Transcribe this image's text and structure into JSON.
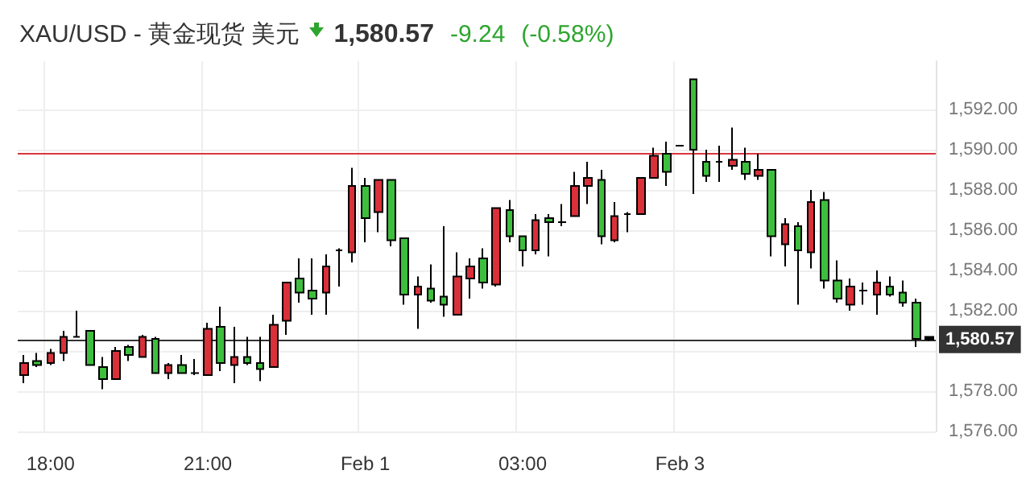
{
  "chart_data": {
    "type": "candlestick",
    "title": "XAU/USD - 黄金现货 美元",
    "annotations": [
      "1,580.57",
      "-9.24",
      "(-0.58%)"
    ],
    "categories": [
      null,
      null,
      "18:00",
      null,
      null,
      null,
      null,
      null,
      null,
      null,
      null,
      null,
      null,
      null,
      "21:00",
      null,
      null,
      null,
      null,
      null,
      null,
      null,
      null,
      null,
      null,
      null,
      "Feb 1",
      null,
      null,
      null,
      null,
      null,
      null,
      null,
      null,
      null,
      null,
      null,
      "03:00",
      null,
      null,
      null,
      null,
      null,
      null,
      null,
      null,
      null,
      null,
      null,
      "Feb 3",
      null,
      null,
      null,
      null,
      null,
      null,
      null,
      null,
      null,
      null,
      null,
      null,
      null,
      null,
      null,
      null,
      null,
      null,
      null
    ],
    "ohlc": [
      [
        1578.8,
        1579.8,
        1578.4,
        1579.4
      ],
      [
        1579.5,
        1579.9,
        1579.2,
        1579.3
      ],
      [
        1579.4,
        1580.1,
        1579.3,
        1579.9
      ],
      [
        1579.9,
        1581.0,
        1579.5,
        1580.7
      ],
      [
        1580.7,
        1582.0,
        1580.7,
        1580.7
      ],
      [
        1581.0,
        1581.0,
        1579.3,
        1579.3
      ],
      [
        1579.2,
        1579.7,
        1578.1,
        1578.6
      ],
      [
        1578.6,
        1580.2,
        1578.6,
        1580.0
      ],
      [
        1580.2,
        1580.3,
        1579.5,
        1579.8
      ],
      [
        1579.7,
        1580.8,
        1579.7,
        1580.7
      ],
      [
        1580.6,
        1580.7,
        1578.9,
        1578.9
      ],
      [
        1578.9,
        1579.4,
        1578.6,
        1579.3
      ],
      [
        1579.3,
        1579.8,
        1578.9,
        1578.9
      ],
      [
        1578.9,
        1579.6,
        1578.8,
        1578.9
      ],
      [
        1578.8,
        1581.4,
        1578.8,
        1581.1
      ],
      [
        1581.2,
        1582.2,
        1579.0,
        1579.4
      ],
      [
        1579.3,
        1581.2,
        1578.4,
        1579.7
      ],
      [
        1579.7,
        1580.7,
        1579.3,
        1579.4
      ],
      [
        1579.4,
        1580.7,
        1578.5,
        1579.1
      ],
      [
        1579.2,
        1581.8,
        1579.2,
        1581.3
      ],
      [
        1581.5,
        1583.4,
        1580.8,
        1583.4
      ],
      [
        1583.6,
        1584.6,
        1582.4,
        1582.9
      ],
      [
        1583.0,
        1584.6,
        1581.8,
        1582.6
      ],
      [
        1582.9,
        1584.8,
        1581.8,
        1584.2
      ],
      [
        1585.0,
        1585.1,
        1583.2,
        1585.0
      ],
      [
        1584.9,
        1589.1,
        1584.4,
        1588.2
      ],
      [
        1588.2,
        1588.6,
        1585.4,
        1586.6
      ],
      [
        1586.9,
        1588.5,
        1585.9,
        1588.5
      ],
      [
        1588.5,
        1588.5,
        1585.2,
        1585.5
      ],
      [
        1585.6,
        1585.6,
        1582.3,
        1582.8
      ],
      [
        1582.8,
        1583.7,
        1581.1,
        1583.2
      ],
      [
        1583.1,
        1584.3,
        1582.4,
        1582.5
      ],
      [
        1582.7,
        1586.2,
        1581.7,
        1582.3
      ],
      [
        1581.8,
        1584.9,
        1581.8,
        1583.7
      ],
      [
        1583.6,
        1584.6,
        1582.6,
        1584.2
      ],
      [
        1584.6,
        1585.1,
        1583.1,
        1583.4
      ],
      [
        1583.3,
        1587.1,
        1583.2,
        1587.1
      ],
      [
        1587.0,
        1587.5,
        1585.4,
        1585.7
      ],
      [
        1585.7,
        1585.7,
        1584.2,
        1585.0
      ],
      [
        1585.0,
        1586.8,
        1584.8,
        1586.5
      ],
      [
        1586.6,
        1586.8,
        1584.7,
        1586.4
      ],
      [
        1586.4,
        1587.3,
        1586.2,
        1586.4
      ],
      [
        1586.7,
        1588.9,
        1586.7,
        1588.2
      ],
      [
        1588.2,
        1589.4,
        1587.3,
        1588.6
      ],
      [
        1588.5,
        1589.0,
        1585.3,
        1585.7
      ],
      [
        1585.5,
        1587.4,
        1585.4,
        1586.7
      ],
      [
        1586.8,
        1586.9,
        1585.9,
        1586.8
      ],
      [
        1586.8,
        1588.6,
        1586.8,
        1588.6
      ],
      [
        1588.6,
        1590.1,
        1588.6,
        1589.7
      ],
      [
        1589.8,
        1590.4,
        1588.2,
        1588.9
      ],
      [
        1590.2,
        1590.2,
        1590.2,
        1590.2
      ],
      [
        1593.5,
        1593.5,
        1587.8,
        1590.0
      ],
      [
        1589.4,
        1590.0,
        1588.4,
        1588.7
      ],
      [
        1589.4,
        1590.2,
        1588.4,
        1589.4
      ],
      [
        1589.2,
        1591.1,
        1589.0,
        1589.5
      ],
      [
        1589.4,
        1590.1,
        1588.5,
        1588.8
      ],
      [
        1588.7,
        1589.8,
        1588.5,
        1589.0
      ],
      [
        1589.0,
        1589.0,
        1584.7,
        1585.7
      ],
      [
        1585.3,
        1586.6,
        1584.2,
        1586.3
      ],
      [
        1586.2,
        1586.4,
        1582.3,
        1585.0
      ],
      [
        1584.9,
        1588.0,
        1584.1,
        1587.4
      ],
      [
        1587.5,
        1587.9,
        1583.1,
        1583.5
      ],
      [
        1583.5,
        1584.5,
        1582.4,
        1582.6
      ],
      [
        1582.3,
        1583.6,
        1582.0,
        1583.2
      ],
      [
        1583.0,
        1583.4,
        1582.3,
        1583.0
      ],
      [
        1582.8,
        1584.0,
        1581.8,
        1583.4
      ],
      [
        1583.2,
        1583.7,
        1582.7,
        1582.8
      ],
      [
        1582.9,
        1583.5,
        1582.2,
        1582.4
      ],
      [
        1582.4,
        1582.6,
        1580.2,
        1580.6
      ],
      [
        1580.7,
        1580.7,
        1580.5,
        1580.57
      ]
    ],
    "colors": [
      "#d9303a",
      "#3dbf3d",
      "#d9303a",
      "#d9303a",
      "#000000",
      "#3dbf3d",
      "#3dbf3d",
      "#d9303a",
      "#3dbf3d",
      "#d9303a",
      "#3dbf3d",
      "#d9303a",
      "#3dbf3d",
      "#000000",
      "#d9303a",
      "#3dbf3d",
      "#d9303a",
      "#3dbf3d",
      "#3dbf3d",
      "#d9303a",
      "#d9303a",
      "#3dbf3d",
      "#3dbf3d",
      "#d9303a",
      "#000000",
      "#d9303a",
      "#3dbf3d",
      "#d9303a",
      "#3dbf3d",
      "#3dbf3d",
      "#d9303a",
      "#3dbf3d",
      "#3dbf3d",
      "#d9303a",
      "#d9303a",
      "#3dbf3d",
      "#d9303a",
      "#3dbf3d",
      "#3dbf3d",
      "#d9303a",
      "#3dbf3d",
      "#000000",
      "#d9303a",
      "#d9303a",
      "#3dbf3d",
      "#d9303a",
      "#000000",
      "#d9303a",
      "#d9303a",
      "#3dbf3d",
      "#000000",
      "#3dbf3d",
      "#3dbf3d",
      "#000000",
      "#d9303a",
      "#3dbf3d",
      "#d9303a",
      "#3dbf3d",
      "#d9303a",
      "#3dbf3d",
      "#d9303a",
      "#3dbf3d",
      "#3dbf3d",
      "#d9303a",
      "#000000",
      "#d9303a",
      "#3dbf3d",
      "#3dbf3d",
      "#3dbf3d",
      "#000000"
    ],
    "ylim": [
      1576,
      1594.4
    ],
    "yticks": [
      {
        "value": 1576,
        "label": "1,576.00"
      },
      {
        "value": 1578,
        "label": "1,578.00"
      },
      {
        "value": 1580,
        "label": null
      },
      {
        "value": 1582,
        "label": "1,582.00"
      },
      {
        "value": 1584,
        "label": "1,584.00"
      },
      {
        "value": 1586,
        "label": "1,586.00"
      },
      {
        "value": 1588,
        "label": "1,588.00"
      },
      {
        "value": 1590,
        "label": "1,590.00"
      },
      {
        "value": 1592,
        "label": "1,592.00"
      }
    ],
    "ref_lines": [
      {
        "axis": "y",
        "value": 1589.8,
        "color": "#d9363e"
      },
      {
        "axis": "y",
        "value": 1580.57,
        "label": "1,580.57",
        "color": "#333333"
      }
    ],
    "grid": true
  }
}
